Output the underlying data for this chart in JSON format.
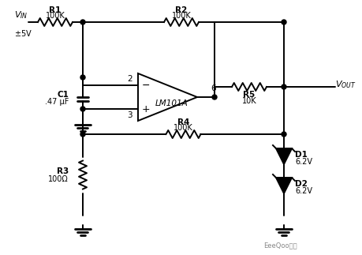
{
  "bg_color": "#ffffff",
  "line_color": "#000000",
  "components": {
    "R1": {
      "label": "R1",
      "value": "100K"
    },
    "R2": {
      "label": "R2",
      "value": "100K"
    },
    "R3": {
      "label": "R3",
      "value": "100Ω"
    },
    "R4": {
      "label": "R4",
      "value": "100K"
    },
    "R5": {
      "label": "R5",
      "value": "10K"
    },
    "C1": {
      "label": "C1",
      "value": ".47 μF"
    },
    "D1": {
      "label": "D1",
      "value": "6.2V"
    },
    "D2": {
      "label": "D2",
      "value": "6.2V"
    },
    "opamp": {
      "label": "LM101A"
    }
  },
  "watermark": "EeeQoo推库"
}
